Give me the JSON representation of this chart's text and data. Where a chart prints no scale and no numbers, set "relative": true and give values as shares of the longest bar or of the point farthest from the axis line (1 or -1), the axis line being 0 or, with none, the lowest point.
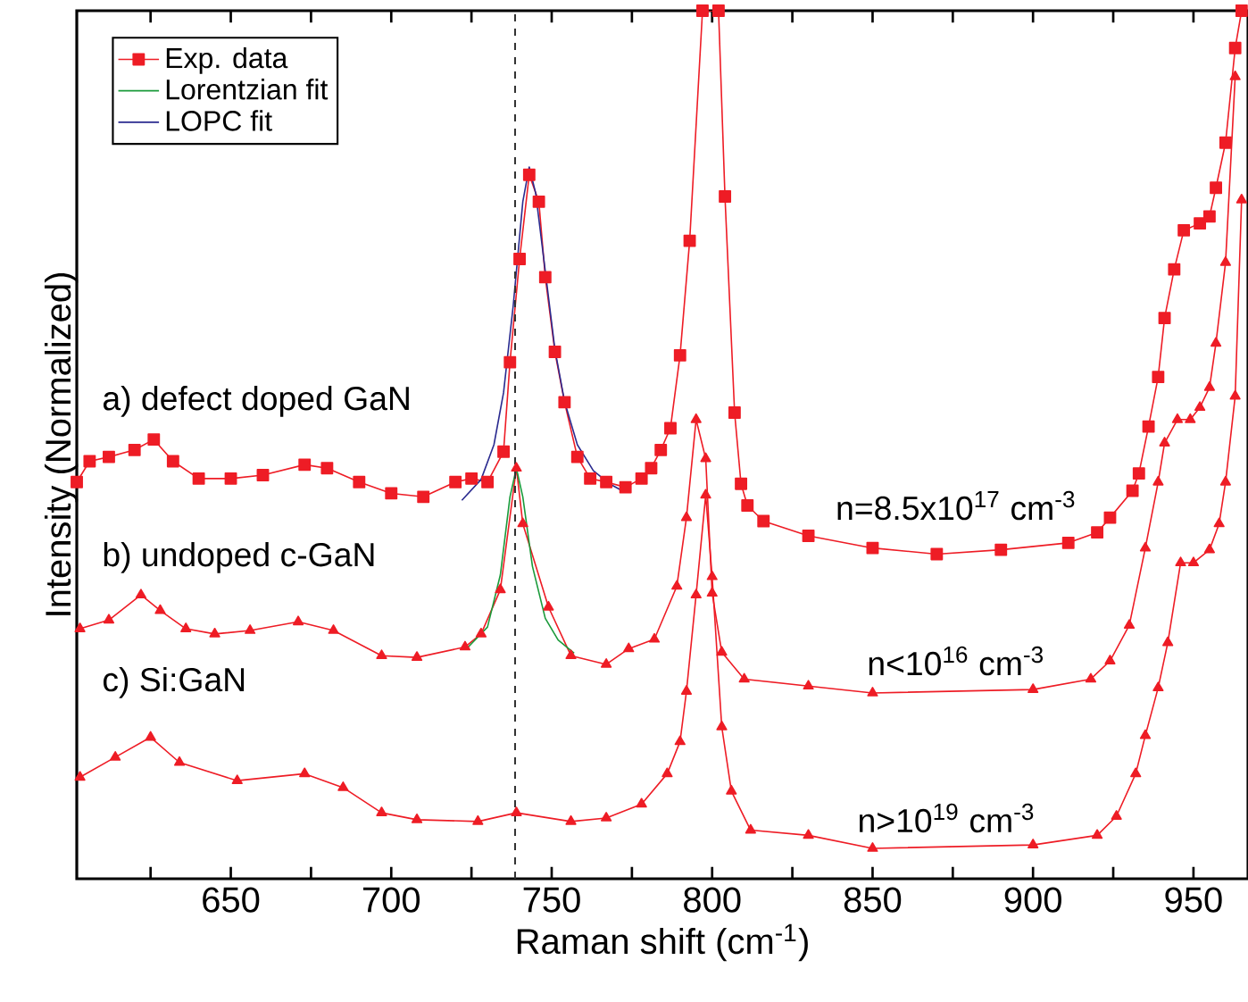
{
  "chart_data": {
    "type": "line",
    "relative": true,
    "xlabel": "Raman shift (cm$^{-1}$)",
    "ylabel": "Intensity (Normalized)",
    "xlim": [
      602,
      967
    ],
    "xticks": [
      {
        "value": 625,
        "label": null
      },
      650,
      {
        "value": 675,
        "label": null
      },
      700,
      {
        "value": 725,
        "label": null
      },
      750,
      {
        "value": 775,
        "label": null
      },
      800,
      {
        "value": 825,
        "label": null
      },
      850,
      {
        "value": 875,
        "label": null
      },
      900,
      {
        "value": 925,
        "label": null
      },
      950
    ],
    "legend": "top left",
    "grid": false,
    "line_style": "solid",
    "ref_lines": [
      {
        "axis": "x",
        "value": 738.6,
        "color": "#333333",
        "line_style": "dashed"
      }
    ],
    "annotations": [
      "a) defect doped GaN",
      "b) undoped c-GaN",
      "c) Si:GaN",
      "n=8.5x10$^{17}$ cm$^{-3}$",
      "n<10$^{16}$ cm$^{-3}$",
      "n>10$^{19}$ cm$^{-3}$"
    ],
    "series": [
      {
        "name": "Exp. data",
        "color": "#ee1c25",
        "marker": "square",
        "x": [
          602,
          606,
          612,
          620,
          626,
          632,
          640,
          650,
          660,
          673,
          680,
          690,
          700,
          710,
          720,
          725,
          730,
          735,
          737,
          740,
          743,
          746,
          748,
          751,
          754,
          758,
          762,
          767,
          773,
          778,
          781,
          784,
          787,
          790,
          793,
          797,
          802,
          804,
          807,
          809,
          811,
          816,
          830,
          850,
          870,
          890,
          911,
          920,
          924,
          931,
          933,
          936,
          939,
          941,
          944,
          947,
          952,
          955,
          957,
          960,
          963,
          965
        ],
        "values": [
          0.457,
          0.481,
          0.486,
          0.494,
          0.506,
          0.481,
          0.461,
          0.461,
          0.465,
          0.477,
          0.473,
          0.457,
          0.444,
          0.44,
          0.457,
          0.461,
          0.457,
          0.492,
          0.595,
          0.714,
          0.811,
          0.78,
          0.693,
          0.607,
          0.549,
          0.486,
          0.461,
          0.457,
          0.451,
          0.461,
          0.473,
          0.494,
          0.519,
          0.603,
          0.735,
          1.0,
          1.0,
          0.786,
          0.537,
          0.455,
          0.43,
          0.412,
          0.395,
          0.381,
          0.374,
          0.379,
          0.387,
          0.399,
          0.416,
          0.447,
          0.467,
          0.521,
          0.578,
          0.646,
          0.702,
          0.747,
          0.755,
          0.763,
          0.796,
          0.848,
          0.957,
          1.0
        ]
      },
      {
        "color": "#ee1c25",
        "marker": "triangle",
        "x": [
          603,
          612,
          622,
          628,
          636,
          645,
          656,
          671,
          682,
          697,
          708,
          723,
          728,
          734,
          739,
          741,
          749,
          756,
          767,
          774,
          782,
          789,
          792,
          795,
          798,
          800,
          803,
          810,
          830,
          850,
          900,
          918,
          924,
          930,
          935,
          939,
          941,
          945,
          949,
          952,
          955,
          957,
          960,
          963
        ],
        "values": [
          0.288,
          0.298,
          0.327,
          0.309,
          0.288,
          0.282,
          0.286,
          0.296,
          0.286,
          0.257,
          0.255,
          0.267,
          0.282,
          0.333,
          0.473,
          0.409,
          0.313,
          0.257,
          0.247,
          0.265,
          0.276,
          0.337,
          0.416,
          0.529,
          0.484,
          0.329,
          0.261,
          0.23,
          0.222,
          0.214,
          0.218,
          0.23,
          0.251,
          0.292,
          0.381,
          0.457,
          0.502,
          0.529,
          0.529,
          0.543,
          0.566,
          0.617,
          0.71,
          0.924
        ]
      },
      {
        "color": "#ee1c25",
        "marker": "triangle",
        "x": [
          603,
          614,
          625,
          634,
          652,
          673,
          685,
          697,
          708,
          727,
          739,
          756,
          767,
          778,
          786,
          790,
          792,
          795,
          798,
          800,
          803,
          806,
          812,
          830,
          850,
          900,
          920,
          926,
          932,
          935,
          939,
          942,
          946,
          950,
          955,
          958,
          960,
          963,
          965
        ],
        "values": [
          0.117,
          0.14,
          0.163,
          0.134,
          0.113,
          0.121,
          0.105,
          0.076,
          0.068,
          0.066,
          0.076,
          0.066,
          0.07,
          0.086,
          0.121,
          0.158,
          0.216,
          0.327,
          0.442,
          0.348,
          0.175,
          0.101,
          0.056,
          0.05,
          0.035,
          0.039,
          0.05,
          0.072,
          0.121,
          0.165,
          0.22,
          0.272,
          0.364,
          0.364,
          0.379,
          0.409,
          0.457,
          0.556,
          0.782
        ]
      },
      {
        "name": "Lorentzian fit",
        "color": "#1a9a3a",
        "marker": "none",
        "x": [
          724,
          730,
          734,
          737,
          739,
          741,
          744,
          748,
          752,
          757
        ],
        "values": [
          0.267,
          0.29,
          0.35,
          0.44,
          0.473,
          0.44,
          0.36,
          0.3,
          0.275,
          0.26
        ]
      },
      {
        "name": "LOPC fit",
        "color": "#2a2a8f",
        "marker": "none",
        "x": [
          722,
          728,
          732,
          735,
          738,
          741,
          743,
          745,
          748,
          751,
          754,
          758,
          763,
          768,
          772
        ],
        "values": [
          0.436,
          0.46,
          0.5,
          0.56,
          0.66,
          0.78,
          0.82,
          0.79,
          0.7,
          0.61,
          0.55,
          0.5,
          0.47,
          0.455,
          0.447
        ]
      }
    ]
  }
}
